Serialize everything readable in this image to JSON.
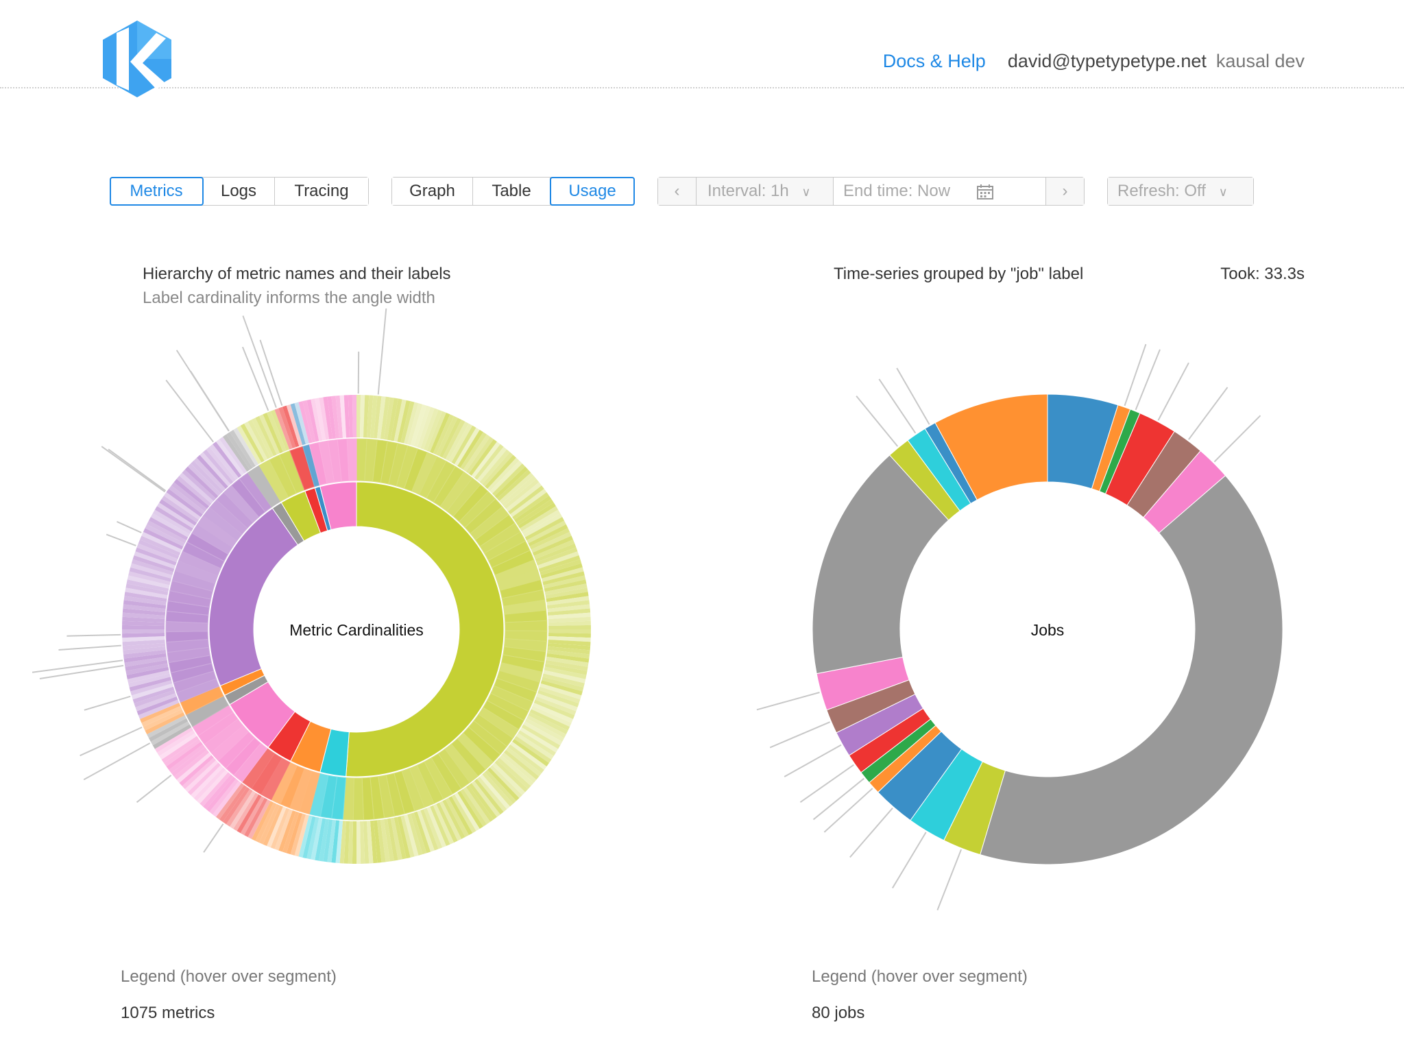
{
  "header": {
    "docs_label": "Docs & Help",
    "user_email": "david@typetypetype.net",
    "org_name": "kausal dev",
    "brand_color": "#3ea3f0"
  },
  "toolbar": {
    "datasource_tabs": [
      "Metrics",
      "Logs",
      "Tracing"
    ],
    "datasource_active": "Metrics",
    "view_tabs": [
      "Graph",
      "Table",
      "Usage"
    ],
    "view_active": "Usage",
    "interval_label": "Interval: 1h",
    "end_time_placeholder": "End time: Now",
    "refresh_label": "Refresh: Off",
    "accent_color": "#1e88e5"
  },
  "left_panel": {
    "title": "Hierarchy of metric names and their labels",
    "subtitle": "Label cardinality informs the angle width",
    "center_label": "Metric Cardinalities",
    "legend_hint": "Legend (hover over segment)",
    "count_text": "1075 metrics"
  },
  "right_panel": {
    "title": "Time-series grouped by \"job\" label",
    "took": "Took: 33.3s",
    "center_label": "Jobs",
    "legend_hint": "Legend (hover over segment)",
    "count_text": "80 jobs"
  },
  "chart_data": [
    {
      "type": "pie",
      "variant": "sunburst",
      "center_label": "Metric Cardinalities",
      "rings": 3,
      "inner_ring": [
        {
          "color": "#c5d034",
          "value": 45
        },
        {
          "color": "#2ecfdb",
          "value": 2.5
        },
        {
          "color": "#ff9131",
          "value": 3
        },
        {
          "color": "#ee3432",
          "value": 2.5
        },
        {
          "color": "#f783cc",
          "value": 5.5
        },
        {
          "color": "#999999",
          "value": 1
        },
        {
          "color": "#ff8f2a",
          "value": 1
        },
        {
          "color": "#b07dcb",
          "value": 19
        },
        {
          "color": "#999999",
          "value": 1
        },
        {
          "color": "#c5d034",
          "value": 2.5
        },
        {
          "color": "#ee3432",
          "value": 1
        },
        {
          "color": "#3a8fc7",
          "value": 0.5
        },
        {
          "color": "#f783cc",
          "value": 3.5
        }
      ]
    },
    {
      "type": "pie",
      "variant": "donut",
      "center_label": "Jobs",
      "slices": [
        {
          "color": "#3a8fc7",
          "value": 5.5
        },
        {
          "color": "#ff9131",
          "value": 1
        },
        {
          "color": "#2ea94a",
          "value": 0.8
        },
        {
          "color": "#ee3432",
          "value": 3
        },
        {
          "color": "#a6736a",
          "value": 2.5
        },
        {
          "color": "#f783cc",
          "value": 2.7
        },
        {
          "color": "#999999",
          "value": 46.5
        },
        {
          "color": "#c5d034",
          "value": 3
        },
        {
          "color": "#2ecfdb",
          "value": 3
        },
        {
          "color": "#3a8fc7",
          "value": 3.3
        },
        {
          "color": "#ff9131",
          "value": 1
        },
        {
          "color": "#2ea94a",
          "value": 1
        },
        {
          "color": "#ee3432",
          "value": 1.6
        },
        {
          "color": "#b07dcb",
          "value": 2
        },
        {
          "color": "#a6736a",
          "value": 1.9
        },
        {
          "color": "#f783cc",
          "value": 2.9
        },
        {
          "color": "#999999",
          "value": 18.5
        },
        {
          "color": "#c5d034",
          "value": 1.8
        },
        {
          "color": "#2ecfdb",
          "value": 1.6
        },
        {
          "color": "#3a8fc7",
          "value": 0.9
        },
        {
          "color": "#ff9131",
          "value": 9
        }
      ]
    }
  ]
}
